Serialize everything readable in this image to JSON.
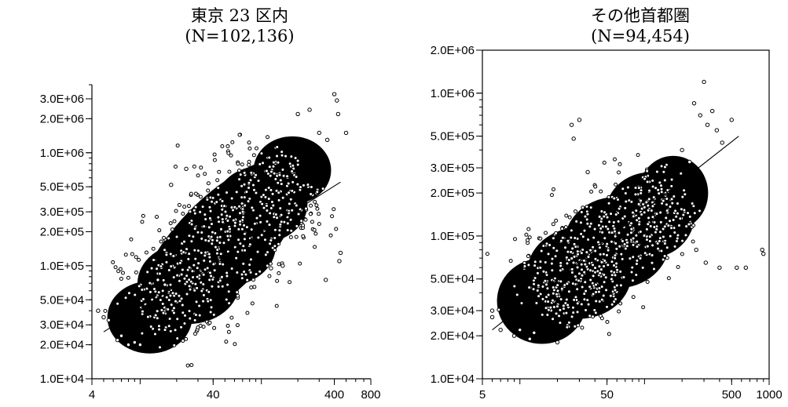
{
  "chart_data": [
    {
      "type": "scatter",
      "title": "東京 23 区内",
      "subtitle": "(N=102,136)",
      "xscale": "log",
      "yscale": "log",
      "xlim": [
        4,
        800
      ],
      "ylim": [
        10000,
        4000000
      ],
      "xticks": [
        {
          "value": 4,
          "label": "4"
        },
        {
          "value": 40,
          "label": "40"
        },
        {
          "value": 400,
          "label": "400"
        },
        {
          "value": 800,
          "label": "800"
        }
      ],
      "yticks": [
        {
          "value": 3000000,
          "label": "3.0E+06"
        },
        {
          "value": 2000000,
          "label": "2.0E+06"
        },
        {
          "value": 1000000,
          "label": "1.0E+06"
        },
        {
          "value": 500000,
          "label": "5.0E+05"
        },
        {
          "value": 300000,
          "label": "3.0E+05"
        },
        {
          "value": 200000,
          "label": "2.0E+05"
        },
        {
          "value": 100000,
          "label": "1.0E+05"
        },
        {
          "value": 50000,
          "label": "5.0E+04"
        },
        {
          "value": 30000,
          "label": "3.0E+04"
        },
        {
          "value": 20000,
          "label": "2.0E+04"
        },
        {
          "value": 10000,
          "label": "1.0E+04"
        }
      ],
      "cloud": [
        {
          "x": 12,
          "y": 35000,
          "w": 0.35,
          "h": 0.32
        },
        {
          "x": 25,
          "y": 70000,
          "w": 0.42,
          "h": 0.36
        },
        {
          "x": 50,
          "y": 150000,
          "w": 0.42,
          "h": 0.36
        },
        {
          "x": 100,
          "y": 350000,
          "w": 0.38,
          "h": 0.34
        },
        {
          "x": 180,
          "y": 700000,
          "w": 0.32,
          "h": 0.3
        }
      ],
      "outliers": [
        {
          "x": 4.5,
          "y": 40000
        },
        {
          "x": 5,
          "y": 35000
        },
        {
          "x": 5.5,
          "y": 33000
        },
        {
          "x": 7,
          "y": 24000
        },
        {
          "x": 6.5,
          "y": 22000
        },
        {
          "x": 8,
          "y": 20000
        },
        {
          "x": 9,
          "y": 21000
        },
        {
          "x": 10,
          "y": 20000
        },
        {
          "x": 14,
          "y": 75000
        },
        {
          "x": 16,
          "y": 68000
        },
        {
          "x": 18,
          "y": 520000
        },
        {
          "x": 24,
          "y": 720000
        },
        {
          "x": 200,
          "y": 2200000
        },
        {
          "x": 250,
          "y": 2400000
        },
        {
          "x": 300,
          "y": 1500000
        },
        {
          "x": 350,
          "y": 1300000
        },
        {
          "x": 400,
          "y": 3300000
        },
        {
          "x": 420,
          "y": 2900000
        },
        {
          "x": 430,
          "y": 2200000
        },
        {
          "x": 500,
          "y": 1500000
        },
        {
          "x": 450,
          "y": 130000
        },
        {
          "x": 440,
          "y": 110000
        },
        {
          "x": 340,
          "y": 75000
        },
        {
          "x": 150,
          "y": 100000
        },
        {
          "x": 120,
          "y": 95000
        }
      ],
      "regression": {
        "x": [
          5,
          450
        ],
        "y": [
          26000,
          550000
        ]
      }
    },
    {
      "type": "scatter",
      "title": "その他首都圏",
      "subtitle": "(N=94,454)",
      "xscale": "log",
      "yscale": "log",
      "xlim": [
        5,
        1000
      ],
      "ylim": [
        10000,
        2000000
      ],
      "xticks": [
        {
          "value": 5,
          "label": "5"
        },
        {
          "value": 50,
          "label": "50"
        },
        {
          "value": 500,
          "label": "500"
        },
        {
          "value": 1000,
          "label": "1000"
        }
      ],
      "yticks": [
        {
          "value": 2000000,
          "label": "2.0E+06"
        },
        {
          "value": 1000000,
          "label": "1.0E+06"
        },
        {
          "value": 500000,
          "label": "5.0E+05"
        },
        {
          "value": 300000,
          "label": "3.0E+05"
        },
        {
          "value": 200000,
          "label": "2.0E+05"
        },
        {
          "value": 100000,
          "label": "1.0E+05"
        },
        {
          "value": 50000,
          "label": "5.0E+04"
        },
        {
          "value": 30000,
          "label": "3.0E+04"
        },
        {
          "value": 20000,
          "label": "2.0E+04"
        },
        {
          "value": 10000,
          "label": "1.0E+04"
        }
      ],
      "cloud": [
        {
          "x": 15,
          "y": 35000,
          "w": 0.36,
          "h": 0.3
        },
        {
          "x": 30,
          "y": 55000,
          "w": 0.42,
          "h": 0.32
        },
        {
          "x": 60,
          "y": 90000,
          "w": 0.42,
          "h": 0.32
        },
        {
          "x": 110,
          "y": 140000,
          "w": 0.36,
          "h": 0.3
        },
        {
          "x": 170,
          "y": 200000,
          "w": 0.28,
          "h": 0.26
        }
      ],
      "outliers": [
        {
          "x": 6,
          "y": 30000
        },
        {
          "x": 6,
          "y": 27000
        },
        {
          "x": 7,
          "y": 22000
        },
        {
          "x": 9,
          "y": 20000
        },
        {
          "x": 10,
          "y": 22000
        },
        {
          "x": 12,
          "y": 19000
        },
        {
          "x": 13,
          "y": 21000
        },
        {
          "x": 20,
          "y": 18000
        },
        {
          "x": 26,
          "y": 600000
        },
        {
          "x": 30,
          "y": 650000
        },
        {
          "x": 27,
          "y": 480000
        },
        {
          "x": 35,
          "y": 280000
        },
        {
          "x": 300,
          "y": 1200000
        },
        {
          "x": 250,
          "y": 850000
        },
        {
          "x": 280,
          "y": 700000
        },
        {
          "x": 320,
          "y": 600000
        },
        {
          "x": 350,
          "y": 750000
        },
        {
          "x": 380,
          "y": 550000
        },
        {
          "x": 420,
          "y": 450000
        },
        {
          "x": 500,
          "y": 650000
        },
        {
          "x": 550,
          "y": 60000
        },
        {
          "x": 650,
          "y": 60000
        },
        {
          "x": 880,
          "y": 80000
        },
        {
          "x": 900,
          "y": 75000
        },
        {
          "x": 200,
          "y": 400000
        },
        {
          "x": 230,
          "y": 330000
        },
        {
          "x": 400,
          "y": 60000
        },
        {
          "x": 260,
          "y": 80000
        },
        {
          "x": 310,
          "y": 65000
        }
      ],
      "regression": {
        "x": [
          6,
          570
        ],
        "y": [
          22000,
          500000
        ]
      }
    }
  ]
}
